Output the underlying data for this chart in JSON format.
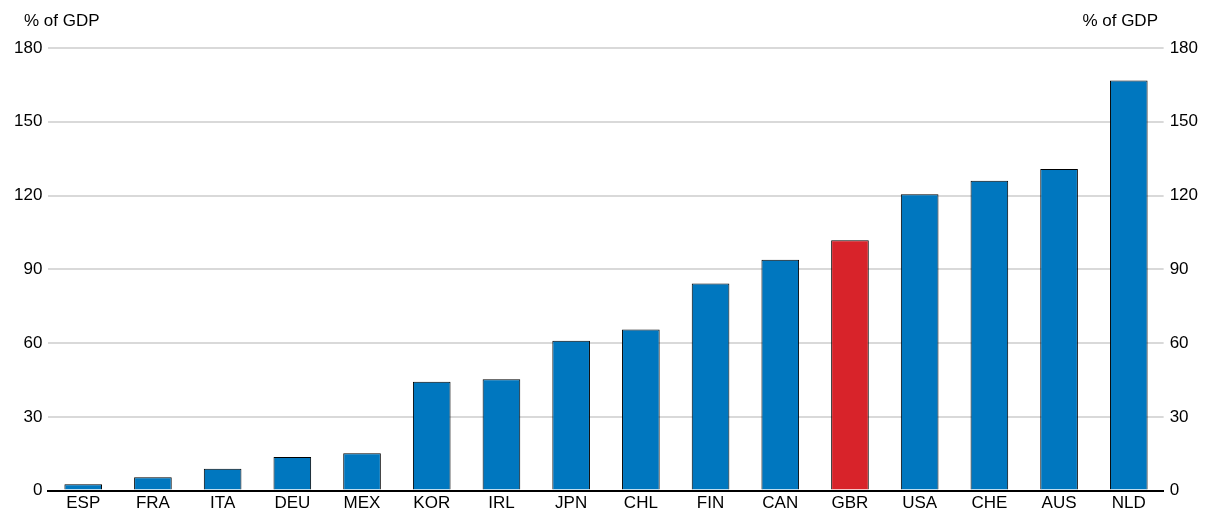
{
  "chart_data": {
    "type": "bar",
    "ylabel": "% of GDP",
    "y2label": "% of GDP",
    "categories": [
      "ESP",
      "FRA",
      "ITA",
      "DEU",
      "MEX",
      "KOR",
      "IRL",
      "JPN",
      "CHL",
      "FIN",
      "CAN",
      "GBR",
      "USA",
      "CHE",
      "AUS",
      "NLD"
    ],
    "values": [
      2.6,
      5.4,
      8.9,
      13.7,
      15.2,
      44.3,
      45.3,
      60.9,
      65.5,
      84.2,
      93.9,
      101.8,
      120.5,
      126.0,
      130.8,
      166.8
    ],
    "colors": [
      "#0077bf",
      "#0077bf",
      "#0077bf",
      "#0077bf",
      "#0077bf",
      "#0077bf",
      "#0077bf",
      "#0077bf",
      "#0077bf",
      "#0077bf",
      "#0077bf",
      "#d8232a",
      "#0077bf",
      "#0077bf",
      "#0077bf",
      "#0077bf"
    ],
    "ylim": [
      0,
      180
    ],
    "yticks": [
      0,
      30,
      60,
      90,
      120,
      150,
      180
    ],
    "y2lim": [
      0,
      180
    ],
    "y2ticks": [
      0,
      30,
      60,
      90,
      120,
      150,
      180
    ],
    "grid": "y",
    "legend": false
  }
}
